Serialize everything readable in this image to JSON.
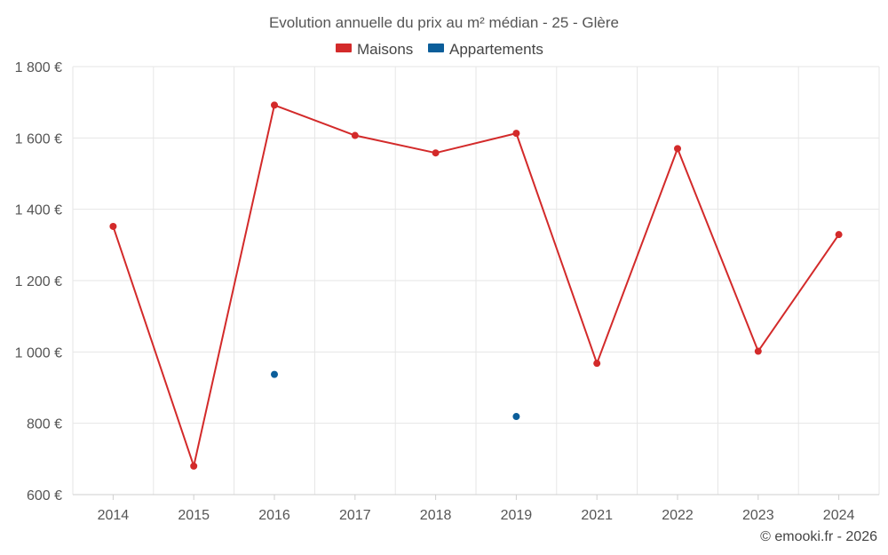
{
  "chart_data": {
    "type": "line",
    "title": "Evolution annuelle du prix au m² médian - 25 - Glère",
    "categories": [
      "2014",
      "2015",
      "2016",
      "2017",
      "2018",
      "2019",
      "2021",
      "2022",
      "2023",
      "2024"
    ],
    "series": [
      {
        "name": "Maisons",
        "color": "#d32a2a",
        "values": [
          1352,
          680,
          1692,
          1607,
          1558,
          1613,
          968,
          1570,
          1002,
          1329
        ],
        "line": true
      },
      {
        "name": "Appartements",
        "color": "#0b5e9a",
        "values": [
          null,
          null,
          937,
          null,
          null,
          819,
          null,
          null,
          null,
          null
        ],
        "line": false
      }
    ],
    "yticks": [
      "1 800 €",
      "1 600 €",
      "1 400 €",
      "1 200 €",
      "1 000 €",
      "800 €",
      "600 €"
    ],
    "ytick_values": [
      1800,
      1600,
      1400,
      1200,
      1000,
      800,
      600
    ],
    "ylim": [
      600,
      1800
    ],
    "xlabel": "",
    "ylabel": "",
    "grid": true,
    "legend_position": "top-center"
  },
  "footer": "© emooki.fr - 2026"
}
